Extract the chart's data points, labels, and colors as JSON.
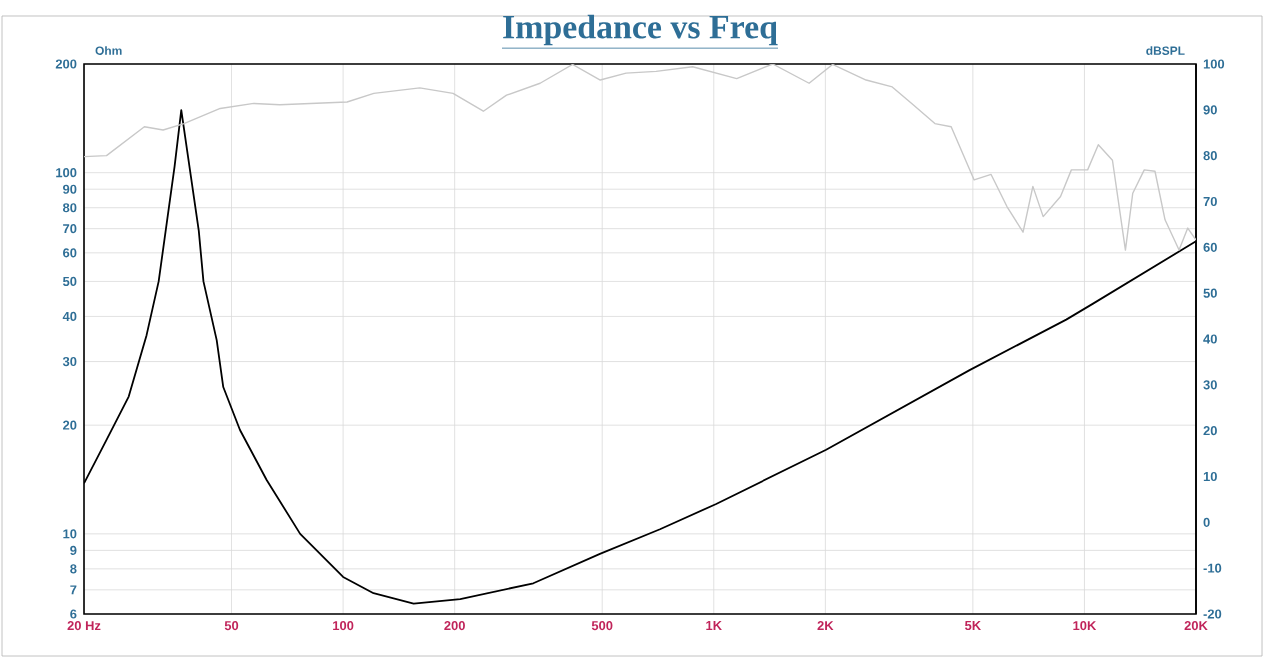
{
  "chart_data": {
    "type": "line",
    "title": "Impedance vs Freq",
    "ylabel": "Ohm",
    "y2label": "dBSPL",
    "log": "xy",
    "grid": true,
    "line_style": "solid",
    "xlim": [
      20,
      20000
    ],
    "xticks": [
      {
        "value": 20,
        "label": "20  Hz"
      },
      50,
      100,
      200,
      500,
      {
        "value": 1000,
        "label": "1K"
      },
      {
        "value": 2000,
        "label": "2K"
      },
      {
        "value": 5000,
        "label": "5K"
      },
      {
        "value": 10000,
        "label": "10K"
      },
      {
        "value": 20000,
        "label": "20K"
      }
    ],
    "ylim": [
      6,
      200
    ],
    "yticks": [
      6,
      7,
      8,
      9,
      10,
      20,
      30,
      40,
      50,
      60,
      70,
      80,
      90,
      100,
      200
    ],
    "y2lim": [
      -20,
      100
    ],
    "y2ticks": [
      -20,
      -10,
      0,
      10,
      20,
      30,
      40,
      50,
      60,
      70,
      80,
      90,
      100
    ],
    "series": [
      {
        "color": "#c8c8c8",
        "axis": "y2",
        "x": [
          20,
          23,
          29.1,
          32.7,
          37.2,
          46.6,
          57.4,
          67.5,
          102.5,
          121,
          161,
          198,
          239,
          276,
          340,
          416,
          494,
          580,
          699,
          877,
          1153,
          1442,
          1808,
          2092,
          2576,
          3030,
          3420,
          3950,
          4370,
          5040,
          5600,
          6180,
          6830,
          7260,
          7740,
          8620,
          9220,
          10200,
          10900,
          11900,
          12900,
          13500,
          14500,
          15500,
          16500,
          18000,
          19000,
          20000
        ],
        "values": [
          79.8,
          80,
          86.3,
          85.6,
          87,
          90.3,
          91.4,
          91.1,
          91.7,
          93.6,
          94.8,
          93.6,
          89.7,
          93.2,
          95.8,
          99.9,
          96.5,
          98,
          98.4,
          99.4,
          96.8,
          100,
          95.8,
          99.9,
          96.5,
          95,
          91.4,
          87,
          86.3,
          74.7,
          75.9,
          68.9,
          63.3,
          73.3,
          66.7,
          71.1,
          76.9,
          76.9,
          82.4,
          79,
          59.4,
          71.8,
          76.9,
          76.6,
          66,
          59.4,
          64.2,
          61.6
        ]
      },
      {
        "color": "#000000",
        "x": [
          20,
          23,
          26.4,
          29.5,
          31.8,
          35.1,
          36.6,
          40.8,
          42,
          45.6,
          47.5,
          52.7,
          62.2,
          76.6,
          100,
          120.8,
          155,
          207,
          326,
          493,
          716,
          1015,
          2010,
          4900,
          8930,
          10550,
          20000
        ],
        "values": [
          13.8,
          18.2,
          24,
          35.5,
          50,
          104,
          149,
          69,
          50,
          34.4,
          25.5,
          19.4,
          14.1,
          10,
          7.6,
          6.85,
          6.41,
          6.6,
          7.3,
          8.8,
          10.3,
          12.1,
          17.1,
          28.4,
          39.2,
          43.4,
          64.6
        ]
      }
    ]
  }
}
